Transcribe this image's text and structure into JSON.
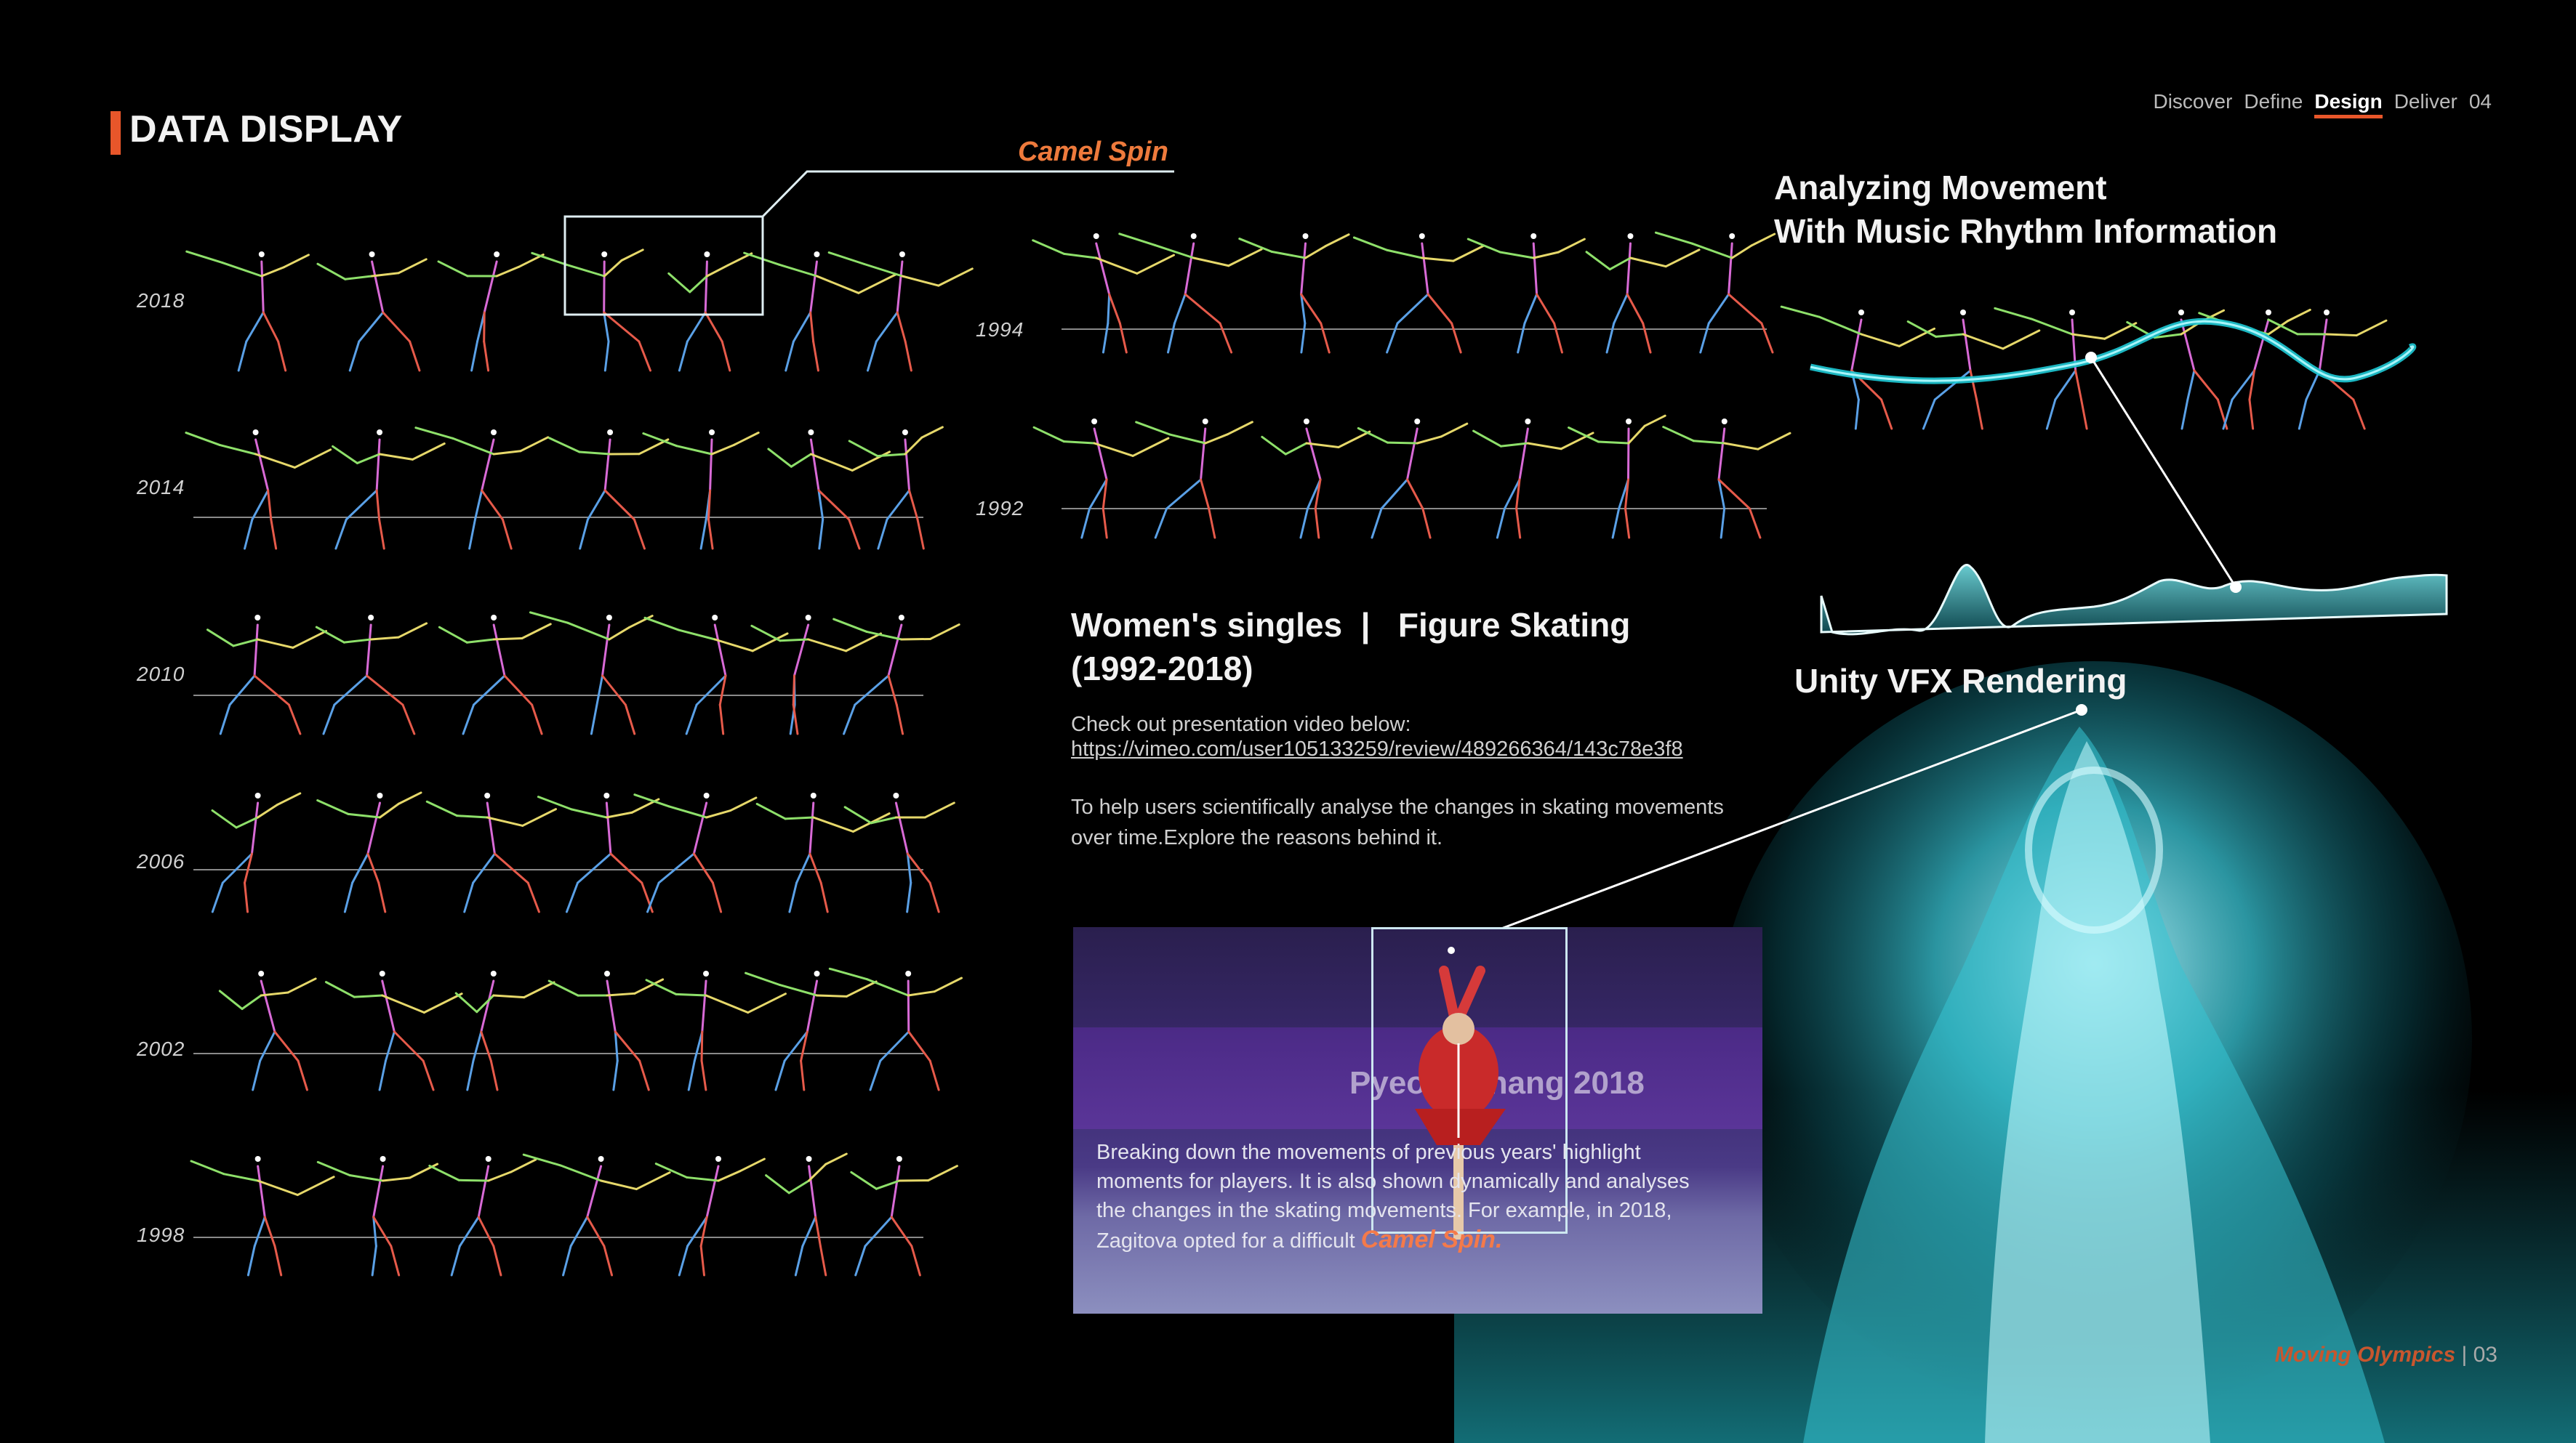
{
  "header": {
    "title": "DATA DISPLAY",
    "nav": [
      "Discover",
      "Define",
      "Design",
      "Deliver",
      "04"
    ],
    "active_nav": "Design"
  },
  "callout": {
    "label": "Camel Spin"
  },
  "years_left": [
    "2018",
    "2014",
    "2010",
    "2006",
    "2002",
    "1998"
  ],
  "years_mid": [
    "1994",
    "1992"
  ],
  "right_panel": {
    "heading_line1": "Analyzing Movement",
    "heading_line2": "With Music Rhythm Information",
    "unity_label": "Unity VFX Rendering"
  },
  "info": {
    "title_line1": "Women's singles  |   Figure Skating",
    "title_line2": "(1992-2018)",
    "video_prompt": "Check out presentation video below:",
    "video_link": "https://vimeo.com/user105133259/review/489266364/143c78e3f8",
    "desc_line1": "To help users scientifically analyse the changes in skating movements",
    "desc_line2": "over time.Explore the reasons behind it."
  },
  "photo": {
    "brand_text": "PyeongChang 2018",
    "text_line1": "Breaking down the movements of previous years' highlight",
    "text_line2": "moments for players. It is also shown dynamically and analyses",
    "text_line3": "the changes in the skating movements. For example, in 2018,",
    "text_line4_prefix": "Zagitova opted for a difficult ",
    "text_line4_highlight": "Camel Spin."
  },
  "footer": {
    "brand": "Moving Olympics",
    "page": "03"
  },
  "colors": {
    "accent": "#e8562a",
    "callout": "#ee7a3c",
    "teal": "#2ec4cf"
  }
}
